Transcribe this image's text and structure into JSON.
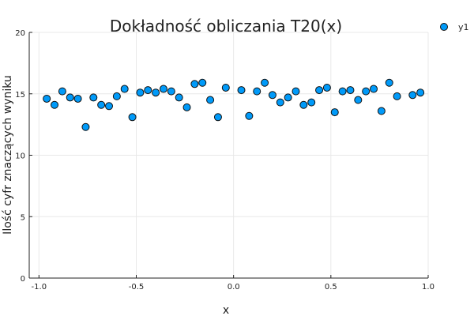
{
  "chart_data": {
    "type": "scatter",
    "title": "Dokładność obliczania T20(x)",
    "xlabel": "x",
    "ylabel": "Ilość cyfr znaczących wyniku",
    "xlim": [
      -1.05,
      1.0
    ],
    "ylim": [
      0,
      20
    ],
    "xticks": [
      -1.0,
      -0.5,
      0.0,
      0.5,
      1.0
    ],
    "xtick_labels": [
      "-1.0",
      "-0.5",
      "0.0",
      "0.5",
      "1.0"
    ],
    "yticks": [
      0,
      5,
      10,
      15,
      20
    ],
    "ytick_labels": [
      "0",
      "5",
      "10",
      "15",
      "20"
    ],
    "grid": true,
    "legend_position": "top-right",
    "series": [
      {
        "name": "y1",
        "color": "#009af9",
        "x": [
          -0.96,
          -0.92,
          -0.88,
          -0.84,
          -0.8,
          -0.76,
          -0.72,
          -0.68,
          -0.64,
          -0.6,
          -0.56,
          -0.52,
          -0.48,
          -0.44,
          -0.4,
          -0.36,
          -0.32,
          -0.28,
          -0.24,
          -0.2,
          -0.16,
          -0.12,
          -0.08,
          -0.04,
          0.04,
          0.08,
          0.12,
          0.16,
          0.2,
          0.24,
          0.28,
          0.32,
          0.36,
          0.4,
          0.44,
          0.48,
          0.52,
          0.56,
          0.6,
          0.64,
          0.68,
          0.72,
          0.76,
          0.8,
          0.84,
          0.92,
          0.96
        ],
        "y": [
          14.6,
          14.1,
          15.2,
          14.7,
          14.6,
          12.3,
          14.7,
          14.1,
          14.0,
          14.8,
          15.4,
          13.1,
          15.1,
          15.3,
          15.1,
          15.4,
          15.2,
          14.7,
          13.9,
          15.8,
          15.9,
          14.5,
          13.1,
          15.5,
          15.3,
          13.2,
          15.2,
          15.9,
          14.9,
          14.3,
          14.7,
          15.2,
          14.1,
          14.3,
          15.3,
          15.5,
          13.5,
          15.2,
          15.3,
          14.5,
          15.2,
          15.4,
          13.6,
          15.9,
          14.8,
          14.9,
          15.1
        ]
      }
    ]
  }
}
